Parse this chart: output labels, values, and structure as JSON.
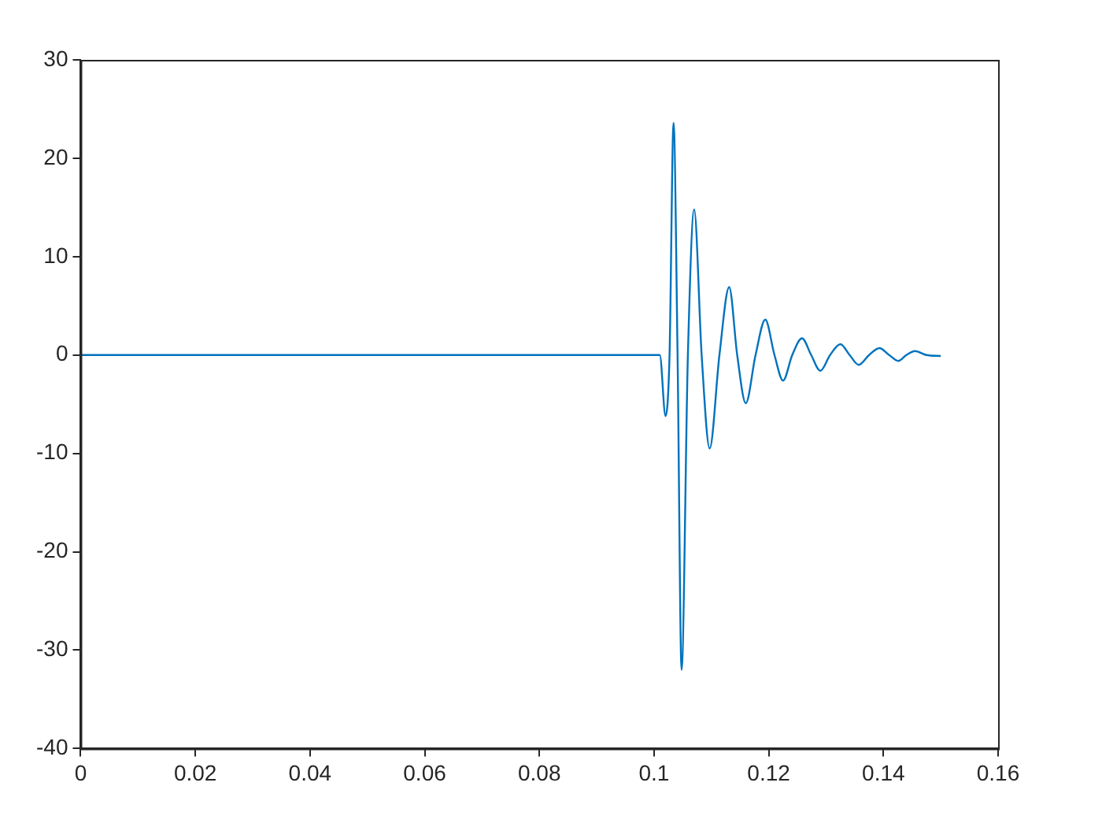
{
  "chart_data": {
    "type": "line",
    "x": [
      0,
      0.101,
      0.102,
      0.1027,
      0.1034,
      0.1041,
      0.1048,
      0.1059,
      0.107,
      0.1083,
      0.1097,
      0.1114,
      0.1131,
      0.1145,
      0.116,
      0.1177,
      0.1194,
      0.121,
      0.1225,
      0.1241,
      0.1258,
      0.1274,
      0.129,
      0.1307,
      0.1325,
      0.1341,
      0.1357,
      0.1375,
      0.1393,
      0.141,
      0.1426,
      0.144,
      0.1455,
      0.1475,
      0.15
    ],
    "series": [
      {
        "color": "#0072bd",
        "values": [
          0,
          0,
          -6.2,
          0,
          23.6,
          0,
          -32,
          0,
          14.8,
          0,
          -9.5,
          0,
          6.9,
          0,
          -4.9,
          0,
          3.6,
          0,
          -2.6,
          0,
          1.7,
          0,
          -1.6,
          0,
          1.1,
          0,
          -1.0,
          0,
          0.7,
          0,
          -0.6,
          0,
          0.4,
          0,
          -0.1
        ]
      }
    ],
    "xlim": [
      0,
      0.16
    ],
    "xticks": [
      0,
      0.02,
      0.04,
      0.06,
      0.08,
      0.1,
      0.12,
      0.14,
      0.16
    ],
    "ylim": [
      -40,
      30
    ],
    "yticks": [
      -40,
      -30,
      -20,
      -10,
      0,
      10,
      20,
      30
    ],
    "grid": false,
    "legend": false,
    "marker": "none",
    "line_style": "solid"
  }
}
